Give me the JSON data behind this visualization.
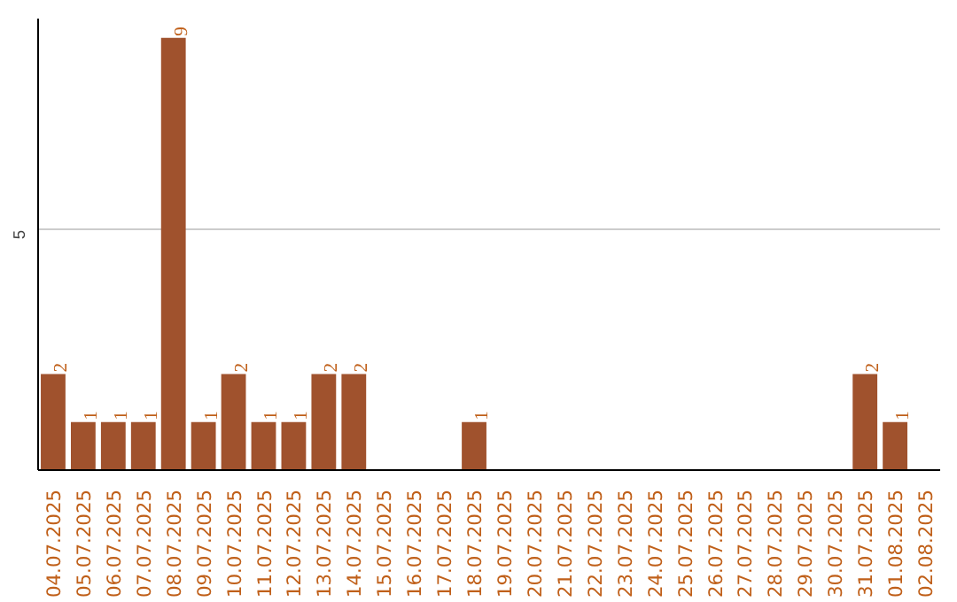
{
  "chart_data": {
    "type": "bar",
    "categories": [
      "04.07.2025",
      "05.07.2025",
      "06.07.2025",
      "07.07.2025",
      "08.07.2025",
      "09.07.2025",
      "10.07.2025",
      "11.07.2025",
      "12.07.2025",
      "13.07.2025",
      "14.07.2025",
      "15.07.2025",
      "16.07.2025",
      "17.07.2025",
      "18.07.2025",
      "19.07.2025",
      "20.07.2025",
      "21.07.2025",
      "22.07.2025",
      "23.07.2025",
      "24.07.2025",
      "25.07.2025",
      "26.07.2025",
      "27.07.2025",
      "28.07.2025",
      "29.07.2025",
      "30.07.2025",
      "31.07.2025",
      "01.08.2025",
      "02.08.2025"
    ],
    "values": [
      2,
      1,
      1,
      1,
      9,
      1,
      2,
      1,
      1,
      2,
      2,
      0,
      0,
      0,
      1,
      0,
      0,
      0,
      0,
      0,
      0,
      0,
      0,
      0,
      0,
      0,
      0,
      2,
      1,
      0
    ],
    "value_labels": [
      "2",
      "1",
      "1",
      "1",
      "9",
      "1",
      "2",
      "1",
      "1",
      "2",
      "2",
      null,
      null,
      null,
      "1",
      null,
      null,
      null,
      null,
      null,
      null,
      null,
      null,
      null,
      null,
      null,
      null,
      "2",
      "1",
      null
    ],
    "color": "#a0522d",
    "ylim": [
      0,
      9.4
    ],
    "yticks": [
      5
    ],
    "grid": "y"
  }
}
